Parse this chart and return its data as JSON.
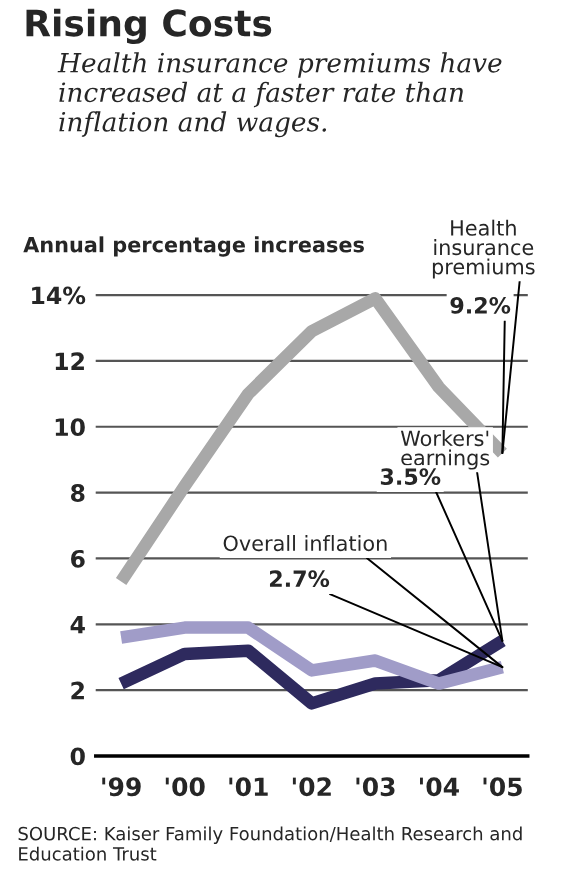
{
  "chart_data": {
    "type": "line",
    "title": "Rising Costs",
    "subtitle": "Health insurance premiums have increased at a faster rate than inflation and wages.",
    "ylabel": "Annual percentage increases",
    "categories": [
      "'99",
      "'00",
      "'01",
      "'02",
      "'03",
      "'04",
      "'05"
    ],
    "series": [
      {
        "name": "Health\ninsurance\npremiums",
        "color": "#a8a8a8",
        "values": [
          5.3,
          8.2,
          11.0,
          12.9,
          13.9,
          11.2,
          9.2
        ]
      },
      {
        "name": "Workers'\nearnings",
        "color": "#2e2a5e",
        "values": [
          2.2,
          3.1,
          3.2,
          1.6,
          2.2,
          2.3,
          3.5
        ]
      },
      {
        "name": "Overall inflation",
        "color": "#a09cc8",
        "values": [
          3.6,
          3.9,
          3.9,
          2.6,
          2.9,
          2.2,
          2.7
        ]
      }
    ],
    "ylim": [
      0,
      14
    ],
    "yticks": [
      0,
      2,
      4,
      6,
      8,
      10,
      12,
      {
        "value": 14,
        "label": "14%"
      }
    ],
    "grid": "y",
    "legend": false,
    "marker": "none",
    "line_style": "solid",
    "annotations": [
      {
        "text": "9.2%",
        "x": "'05",
        "y": 9.2
      },
      {
        "text": "3.5%",
        "x": "'05",
        "y": 3.5
      },
      {
        "text": "2.7%",
        "x": "'05",
        "y": 2.7
      },
      "SOURCE: Kaiser Family Foundation/Health Research and Education Trust"
    ]
  }
}
